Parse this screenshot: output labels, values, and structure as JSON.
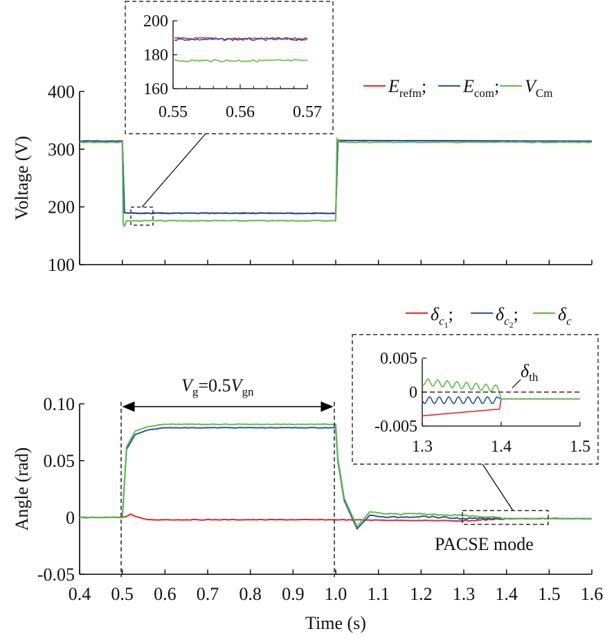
{
  "chart_data": [
    {
      "type": "line",
      "ylabel": "Voltage (V)",
      "xlim": [
        0.4,
        1.6
      ],
      "ylim": [
        100,
        400
      ],
      "yticks": [
        100,
        200,
        300,
        400
      ],
      "legend_position": "top-right",
      "series": [
        {
          "name": "Erefm",
          "color": "#e8262a",
          "x": [
            0.4,
            0.5,
            0.505,
            0.515,
            1.0,
            1.005,
            1.6
          ],
          "values": [
            314,
            314,
            190,
            189,
            189,
            315,
            314
          ]
        },
        {
          "name": "Ecom",
          "color": "#2653a3",
          "x": [
            0.4,
            0.5,
            0.505,
            0.515,
            1.0,
            1.005,
            1.6
          ],
          "values": [
            314,
            314,
            190,
            189,
            189,
            315,
            314
          ]
        },
        {
          "name": "VCm",
          "color": "#5dbb46",
          "x": [
            0.4,
            0.5,
            0.502,
            0.505,
            0.51,
            0.52,
            1.0,
            1.003,
            1.01,
            1.6
          ],
          "values": [
            312,
            312,
            170,
            167,
            176,
            176,
            176,
            318,
            312,
            312
          ]
        }
      ],
      "inset": {
        "xlim": [
          0.55,
          0.57
        ],
        "ylim": [
          160,
          200
        ],
        "xticks": [
          "0.55",
          "0.56",
          "0.57"
        ],
        "yticks": [
          "160",
          "180",
          "200"
        ],
        "series": [
          {
            "name": "Erefm",
            "level": 189.5
          },
          {
            "name": "Ecom",
            "level": 189
          },
          {
            "name": "VCm",
            "level": 176.5
          }
        ]
      },
      "legend": {
        "items": [
          {
            "main": "E",
            "sub": "refm",
            "sep": ";",
            "color": "#e8262a"
          },
          {
            "main": "E",
            "sub": "com",
            "sep": ";",
            "color": "#2653a3"
          },
          {
            "main": "V",
            "sub": "Cm",
            "sep": "",
            "color": "#5dbb46"
          }
        ]
      }
    },
    {
      "type": "line",
      "xlabel": "Time (s)",
      "ylabel": "Angle (rad)",
      "xlim": [
        0.4,
        1.6
      ],
      "ylim": [
        -0.05,
        0.1
      ],
      "xticks": [
        "0.4",
        "0.5",
        "0.6",
        "0.7",
        "0.8",
        "0.9",
        "1.0",
        "1.1",
        "1.2",
        "1.3",
        "1.4",
        "1.5",
        "1.6"
      ],
      "yticks": [
        "-0.05",
        "0",
        "0.05",
        "0.10"
      ],
      "legend_position": "top-right",
      "series": [
        {
          "name": "δc1",
          "color": "#e8262a",
          "x": [
            0.4,
            0.5,
            0.51,
            0.52,
            0.53,
            0.56,
            0.6,
            1.0,
            1.3,
            1.4,
            1.6
          ],
          "values": [
            0,
            0,
            0.001,
            0.003,
            0.001,
            -0.002,
            -0.002,
            -0.002,
            -0.003,
            -0.001,
            -0.001
          ]
        },
        {
          "name": "δc2",
          "color": "#2653a3",
          "x": [
            0.4,
            0.5,
            0.51,
            0.53,
            0.56,
            0.6,
            1.0,
            1.005,
            1.02,
            1.05,
            1.08,
            1.12,
            1.2,
            1.3,
            1.4,
            1.6
          ],
          "values": [
            0,
            0,
            0.06,
            0.073,
            0.077,
            0.079,
            0.079,
            0.05,
            0.015,
            -0.01,
            0.002,
            0,
            0.001,
            -0.001,
            -0.001,
            -0.001
          ]
        },
        {
          "name": "δc",
          "color": "#5dbb46",
          "x": [
            0.4,
            0.5,
            0.51,
            0.53,
            0.56,
            0.6,
            1.0,
            1.005,
            1.02,
            1.05,
            1.08,
            1.12,
            1.2,
            1.3,
            1.4,
            1.6
          ],
          "values": [
            0,
            0,
            0.062,
            0.076,
            0.08,
            0.082,
            0.082,
            0.052,
            0.017,
            -0.008,
            0.005,
            0.003,
            0.003,
            0.002,
            -0.001,
            -0.001
          ]
        }
      ],
      "annotations": {
        "arrow_label_main": "V",
        "arrow_label_sub": "g",
        "arrow_label_mid": "=0.5",
        "arrow_label_main2": "V",
        "arrow_label_sub2": "gn",
        "arrow_span": [
          0.5,
          1.0
        ],
        "mode_label": "PACSE mode",
        "mode_box_x": [
          1.3,
          1.5
        ]
      },
      "inset": {
        "xlim": [
          1.3,
          1.5
        ],
        "ylim": [
          -0.005,
          0.005
        ],
        "xticks": [
          "1.3",
          "1.4",
          "1.5"
        ],
        "yticks": [
          "-0.005",
          "0",
          "0.005"
        ],
        "threshold_label_main": "δ",
        "threshold_label_sub": "th"
      },
      "legend": {
        "items": [
          {
            "main": "δ",
            "sub": "c",
            "subsub": "1",
            "sep": ";",
            "color": "#e8262a"
          },
          {
            "main": "δ",
            "sub": "c",
            "subsub": "2",
            "sep": ";",
            "color": "#2653a3"
          },
          {
            "main": "δ",
            "sub": "c",
            "subsub": "",
            "sep": "",
            "color": "#5dbb46"
          }
        ]
      }
    }
  ]
}
